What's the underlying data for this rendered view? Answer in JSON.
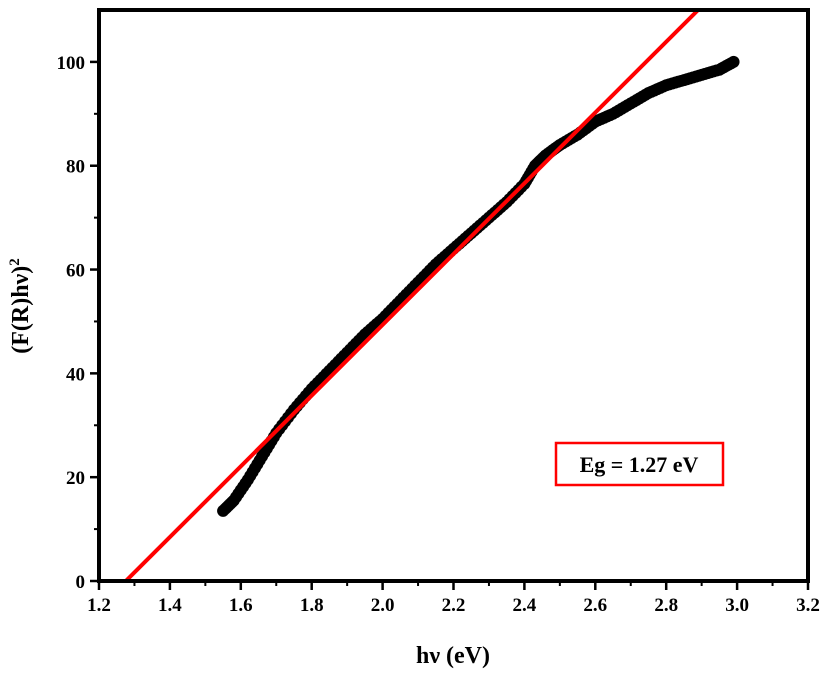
{
  "chart_data": {
    "type": "scatter",
    "xlabel": "hν (eV)",
    "ylabel": "(F(R)hν)",
    "ylabel_superscript": "2",
    "xlim": [
      1.2,
      3.2
    ],
    "ylim": [
      0,
      110
    ],
    "x_ticks": [
      "1.2",
      "1.4",
      "1.6",
      "1.8",
      "2.0",
      "2.2",
      "2.4",
      "2.6",
      "2.8",
      "3.0",
      "3.2"
    ],
    "y_ticks": [
      "0",
      "20",
      "40",
      "60",
      "80",
      "100"
    ],
    "grid": false,
    "series": [
      {
        "marker_color": "#000000",
        "x": [
          1.55,
          1.58,
          1.62,
          1.66,
          1.7,
          1.75,
          1.8,
          1.85,
          1.9,
          1.95,
          2.0,
          2.05,
          2.1,
          2.15,
          2.2,
          2.25,
          2.3,
          2.35,
          2.4,
          2.43,
          2.46,
          2.5,
          2.55,
          2.6,
          2.65,
          2.7,
          2.75,
          2.8,
          2.85,
          2.9,
          2.95,
          2.99
        ],
        "y": [
          13.5,
          15.5,
          19.5,
          24,
          28.5,
          33,
          37,
          40.5,
          44,
          47.5,
          50.5,
          54,
          57.5,
          61,
          64,
          67,
          70,
          73,
          76.5,
          80,
          82,
          84,
          86,
          88.5,
          90,
          92,
          94,
          95.5,
          96.5,
          97.5,
          98.5,
          100
        ]
      },
      {
        "line_color": "#ff0000",
        "x": [
          1.22,
          2.89
        ],
        "y": [
          -3.8,
          110
        ]
      }
    ],
    "annotations": [
      {
        "text": "Eg = 1.27 eV",
        "border_color": "#ff0000"
      }
    ]
  }
}
